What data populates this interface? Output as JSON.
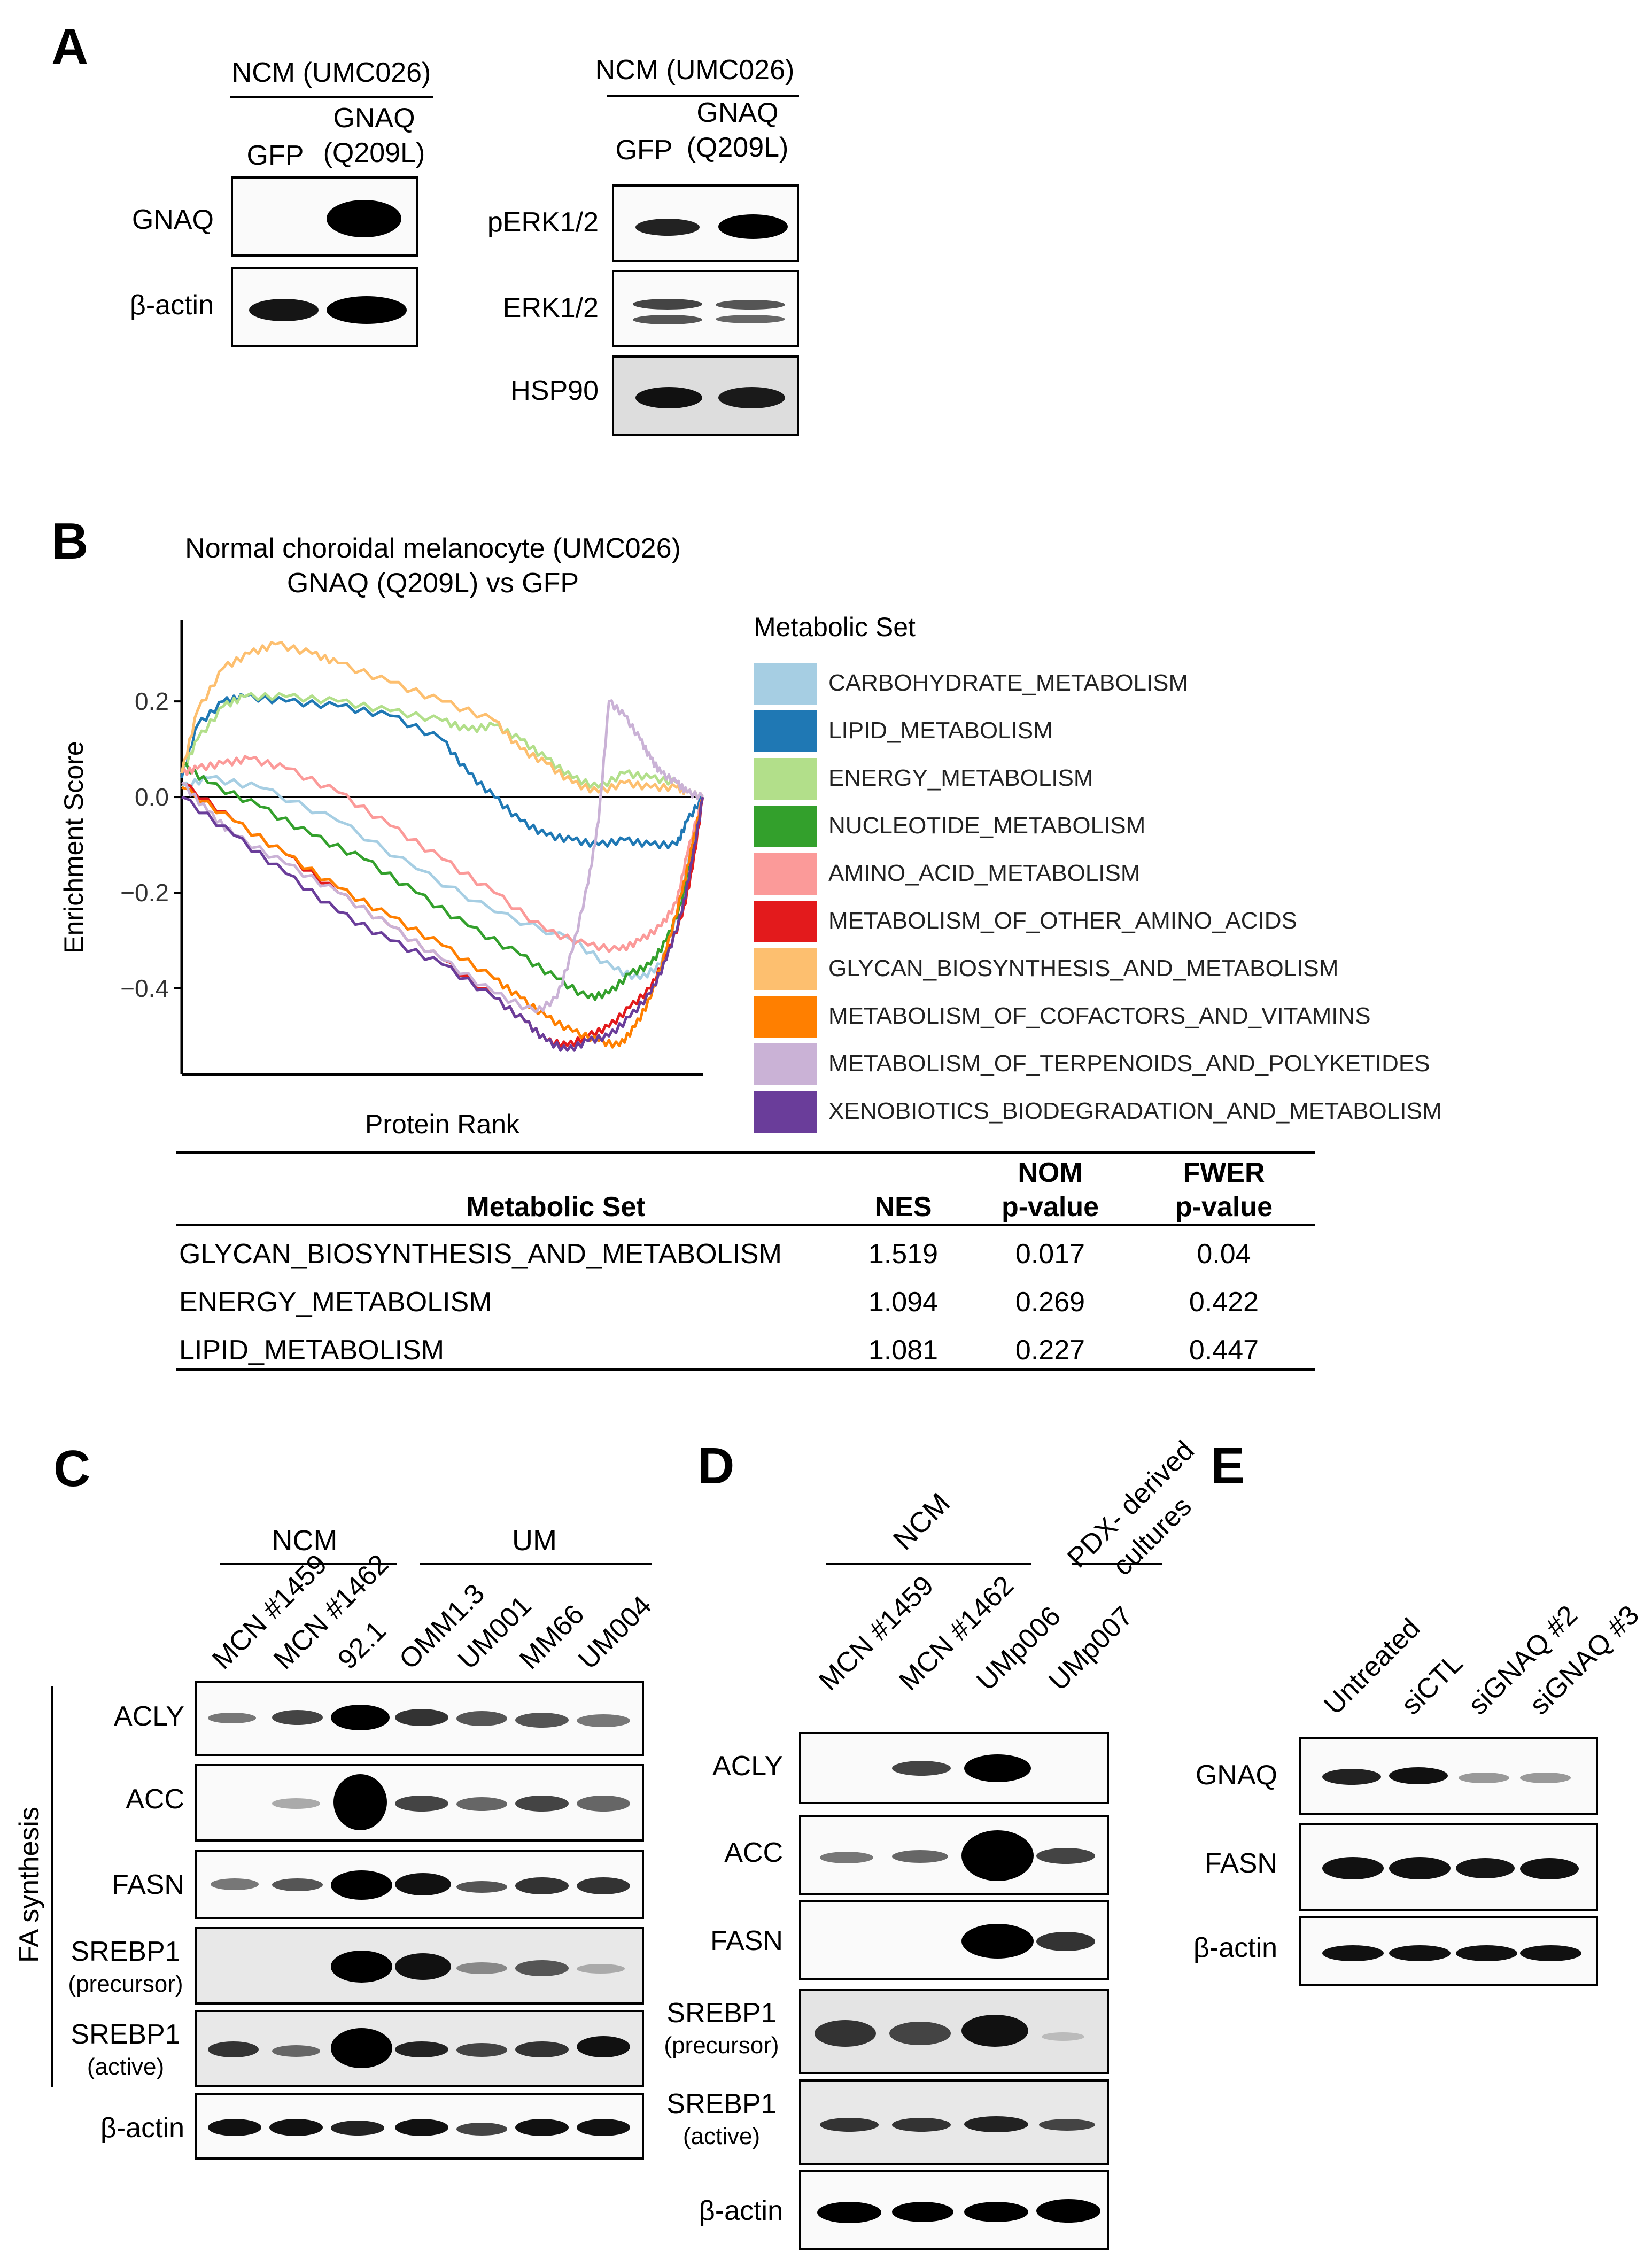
{
  "panels": {
    "A": {
      "label": "A",
      "left": {
        "header": "NCM (UMC026)",
        "lanes": [
          "GFP",
          "GNAQ",
          "(Q209L)"
        ],
        "rows": [
          "GNAQ",
          "β-actin"
        ]
      },
      "right": {
        "header": "NCM (UMC026)",
        "lanes": [
          "GFP",
          "GNAQ",
          "(Q209L)"
        ],
        "rows": [
          "pERK1/2",
          "ERK1/2",
          "HSP90"
        ]
      }
    },
    "B": {
      "label": "B",
      "title_line1": "Normal choroidal melanocyte (UMC026)",
      "title_line2": "GNAQ (Q209L) vs GFP",
      "table": {
        "headers": [
          "Metabolic Set",
          "NES",
          "NOM",
          "p-value",
          "FWER",
          "p-value"
        ],
        "rows": [
          {
            "set": "GLYCAN_BIOSYNTHESIS_AND_METABOLISM",
            "nes": "1.519",
            "nom": "0.017",
            "fwer": "0.04"
          },
          {
            "set": "ENERGY_METABOLISM",
            "nes": "1.094",
            "nom": "0.269",
            "fwer": "0.422"
          },
          {
            "set": "LIPID_METABOLISM",
            "nes": "1.081",
            "nom": "0.227",
            "fwer": "0.447"
          }
        ]
      }
    },
    "C": {
      "label": "C",
      "groups": [
        "NCM",
        "UM"
      ],
      "lanes": [
        "MCN #1459",
        "MCN #1462",
        "92.1",
        "OMM1.3",
        "UM001",
        "MM66",
        "UM004"
      ],
      "side_label": "FA synthesis",
      "rows": [
        "ACLY",
        "ACC",
        "FASN",
        "SREBP1",
        "(precursor)",
        "SREBP1",
        "(active)",
        "β-actin"
      ]
    },
    "D": {
      "label": "D",
      "groups": [
        "NCM",
        "PDX- derived",
        "cultures"
      ],
      "lanes": [
        "MCN #1459",
        "MCN #1462",
        "UMp006",
        "UMp007"
      ],
      "rows": [
        "ACLY",
        "ACC",
        "FASN",
        "SREBP1",
        "(precursor)",
        "SREBP1",
        "(active)",
        "β-actin"
      ]
    },
    "E": {
      "label": "E",
      "lanes": [
        "Untreated",
        "siCTL",
        "siGNAQ #2",
        "siGNAQ #3"
      ],
      "rows": [
        "GNAQ",
        "FASN",
        "β-actin"
      ]
    }
  },
  "chart_data": {
    "type": "line",
    "title": "Normal choroidal melanocyte (UMC026) GNAQ (Q209L) vs GFP",
    "xlabel": "Protein Rank",
    "ylabel": "Enrichment Score",
    "xlim": [
      0,
      100
    ],
    "ylim": [
      -0.58,
      0.37
    ],
    "yticks": [
      "0.2",
      "0.0",
      "−0.2",
      "−0.4"
    ],
    "ytick_values": [
      0.2,
      0.0,
      -0.2,
      -0.4
    ],
    "legend_title": "Metabolic Set",
    "legend_position": "right",
    "series": [
      {
        "name": "CARBOHYDRATE_METABOLISM",
        "color": "#a6cee3",
        "x": [
          0,
          5,
          15,
          30,
          45,
          60,
          75,
          83,
          88,
          92,
          95,
          97,
          100
        ],
        "y": [
          0.02,
          0.04,
          0.02,
          -0.05,
          -0.15,
          -0.24,
          -0.3,
          -0.36,
          -0.38,
          -0.35,
          -0.25,
          -0.15,
          0
        ]
      },
      {
        "name": "LIPID_METABOLISM",
        "color": "#1f78b4",
        "x": [
          0,
          3,
          8,
          12,
          20,
          30,
          40,
          50,
          55,
          60,
          65,
          70,
          75,
          80,
          85,
          90,
          95,
          97,
          100
        ],
        "y": [
          0.04,
          0.15,
          0.2,
          0.21,
          0.2,
          0.19,
          0.17,
          0.12,
          0.05,
          0,
          -0.05,
          -0.08,
          -0.09,
          -0.1,
          -0.09,
          -0.1,
          -0.1,
          -0.05,
          0
        ]
      },
      {
        "name": "ENERGY_METABOLISM",
        "color": "#b2df8a",
        "x": [
          0,
          3,
          8,
          12,
          20,
          30,
          40,
          50,
          55,
          60,
          65,
          70,
          75,
          80,
          85,
          90,
          95,
          97,
          100
        ],
        "y": [
          0.05,
          0.12,
          0.19,
          0.21,
          0.21,
          0.2,
          0.18,
          0.16,
          0.14,
          0.15,
          0.12,
          0.08,
          0.04,
          0.02,
          0.05,
          0.04,
          0.03,
          0.01,
          0
        ]
      },
      {
        "name": "NUCLEOTIDE_METABOLISM",
        "color": "#33a02c",
        "x": [
          0,
          5,
          15,
          25,
          35,
          45,
          55,
          65,
          72,
          78,
          82,
          86,
          90,
          93,
          96,
          98,
          100
        ],
        "y": [
          0.07,
          0.03,
          -0.02,
          -0.08,
          -0.13,
          -0.2,
          -0.27,
          -0.33,
          -0.38,
          -0.42,
          -0.41,
          -0.37,
          -0.35,
          -0.3,
          -0.22,
          -0.1,
          0
        ]
      },
      {
        "name": "AMINO_ACID_METABOLISM",
        "color": "#fb9a99",
        "x": [
          0,
          3,
          8,
          13,
          20,
          30,
          40,
          50,
          60,
          70,
          78,
          84,
          88,
          92,
          95,
          97,
          100
        ],
        "y": [
          0.05,
          0.06,
          0.07,
          0.08,
          0.06,
          0.01,
          -0.06,
          -0.13,
          -0.2,
          -0.28,
          -0.31,
          -0.32,
          -0.3,
          -0.27,
          -0.22,
          -0.12,
          0
        ]
      },
      {
        "name": "METABOLISM_OF_OTHER_AMINO_ACIDS",
        "color": "#e31a1c",
        "x": [
          0,
          10,
          20,
          30,
          40,
          50,
          60,
          66,
          70,
          74,
          78,
          82,
          86,
          90,
          93,
          96,
          98,
          100
        ],
        "y": [
          0.03,
          -0.05,
          -0.12,
          -0.2,
          -0.27,
          -0.34,
          -0.42,
          -0.47,
          -0.51,
          -0.52,
          -0.5,
          -0.48,
          -0.44,
          -0.4,
          -0.33,
          -0.25,
          -0.15,
          0
        ]
      },
      {
        "name": "GLYCAN_BIOSYNTHESIS_AND_METABOLISM",
        "color": "#fdbf6f",
        "x": [
          0,
          3,
          8,
          13,
          18,
          25,
          30,
          40,
          50,
          60,
          65,
          70,
          75,
          80,
          85,
          90,
          95,
          97,
          100
        ],
        "y": [
          0.05,
          0.18,
          0.27,
          0.3,
          0.32,
          0.3,
          0.28,
          0.24,
          0.2,
          0.16,
          0.1,
          0.07,
          0.03,
          0.01,
          0.03,
          0.02,
          0.02,
          0.01,
          0
        ]
      },
      {
        "name": "METABOLISM_OF_COFACTORS_AND_VITAMINS",
        "color": "#ff7f00",
        "x": [
          0,
          10,
          20,
          30,
          40,
          50,
          60,
          65,
          70,
          75,
          80,
          84,
          87,
          90,
          93,
          96,
          98,
          100
        ],
        "y": [
          0.02,
          -0.05,
          -0.12,
          -0.19,
          -0.25,
          -0.31,
          -0.38,
          -0.42,
          -0.46,
          -0.49,
          -0.51,
          -0.52,
          -0.48,
          -0.42,
          -0.32,
          -0.2,
          -0.1,
          0
        ]
      },
      {
        "name": "METABOLISM_OF_TERPENOIDS_AND_POLYKETIDES",
        "color": "#cab2d6",
        "x": [
          0,
          5,
          10,
          20,
          30,
          40,
          50,
          60,
          68,
          72,
          75,
          78,
          80,
          82,
          85,
          88,
          90,
          92,
          95,
          97,
          100
        ],
        "y": [
          0.03,
          -0.03,
          -0.08,
          -0.14,
          -0.2,
          -0.27,
          -0.34,
          -0.41,
          -0.45,
          -0.42,
          -0.32,
          -0.18,
          -0.05,
          0.2,
          0.17,
          0.12,
          0.08,
          0.05,
          0.03,
          0.01,
          0
        ]
      },
      {
        "name": "XENOBIOTICS_BIODEGRADATION_AND_METABOLISM",
        "color": "#6a3d9a",
        "x": [
          0,
          10,
          20,
          30,
          40,
          50,
          60,
          66,
          70,
          74,
          78,
          82,
          86,
          90,
          93,
          96,
          98,
          100
        ],
        "y": [
          0,
          -0.08,
          -0.16,
          -0.24,
          -0.3,
          -0.35,
          -0.42,
          -0.47,
          -0.51,
          -0.53,
          -0.51,
          -0.5,
          -0.46,
          -0.41,
          -0.34,
          -0.24,
          -0.13,
          0
        ]
      }
    ]
  }
}
